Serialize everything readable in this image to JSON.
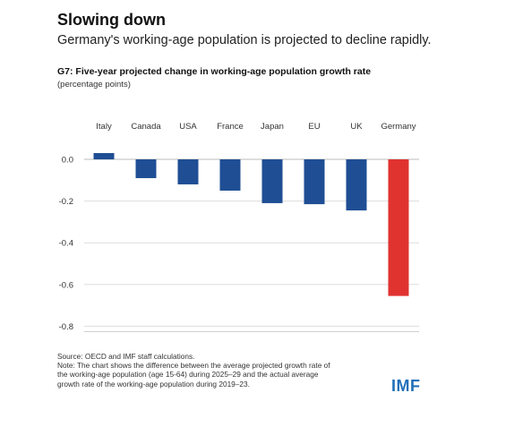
{
  "title": "Slowing down",
  "subtitle": "Germany's working-age population is projected to decline rapidly.",
  "chart_title": "G7: Five-year projected change in working-age population growth rate",
  "chart_units": "(percentage points)",
  "notes": {
    "source": "Source: OECD and IMF staff calculations.",
    "note_lines": [
      "Note: The chart shows the difference between the average projected growth rate of",
      "the working-age population (age 15-64) during 2025–29 and the actual average",
      "growth rate of the working-age population during 2019–23."
    ]
  },
  "logo": "IMF",
  "colors": {
    "bar": "#1f4e94",
    "highlight": "#e03330",
    "grid": "#dddddd"
  },
  "chart_data": {
    "type": "bar",
    "categories": [
      "Italy",
      "Canada",
      "USA",
      "France",
      "Japan",
      "EU",
      "UK",
      "Germany"
    ],
    "values": [
      0.03,
      -0.09,
      -0.12,
      -0.15,
      -0.21,
      -0.215,
      -0.245,
      -0.655
    ],
    "highlight": "Germany",
    "yticks": [
      0.0,
      -0.2,
      -0.4,
      -0.6,
      -0.8
    ],
    "ytick_labels": [
      "0.0",
      "-0.2",
      "-0.4",
      "-0.6",
      "-0.8"
    ],
    "ylim": [
      -0.8,
      0.05
    ],
    "category_labels_position": "top",
    "grid": true
  }
}
